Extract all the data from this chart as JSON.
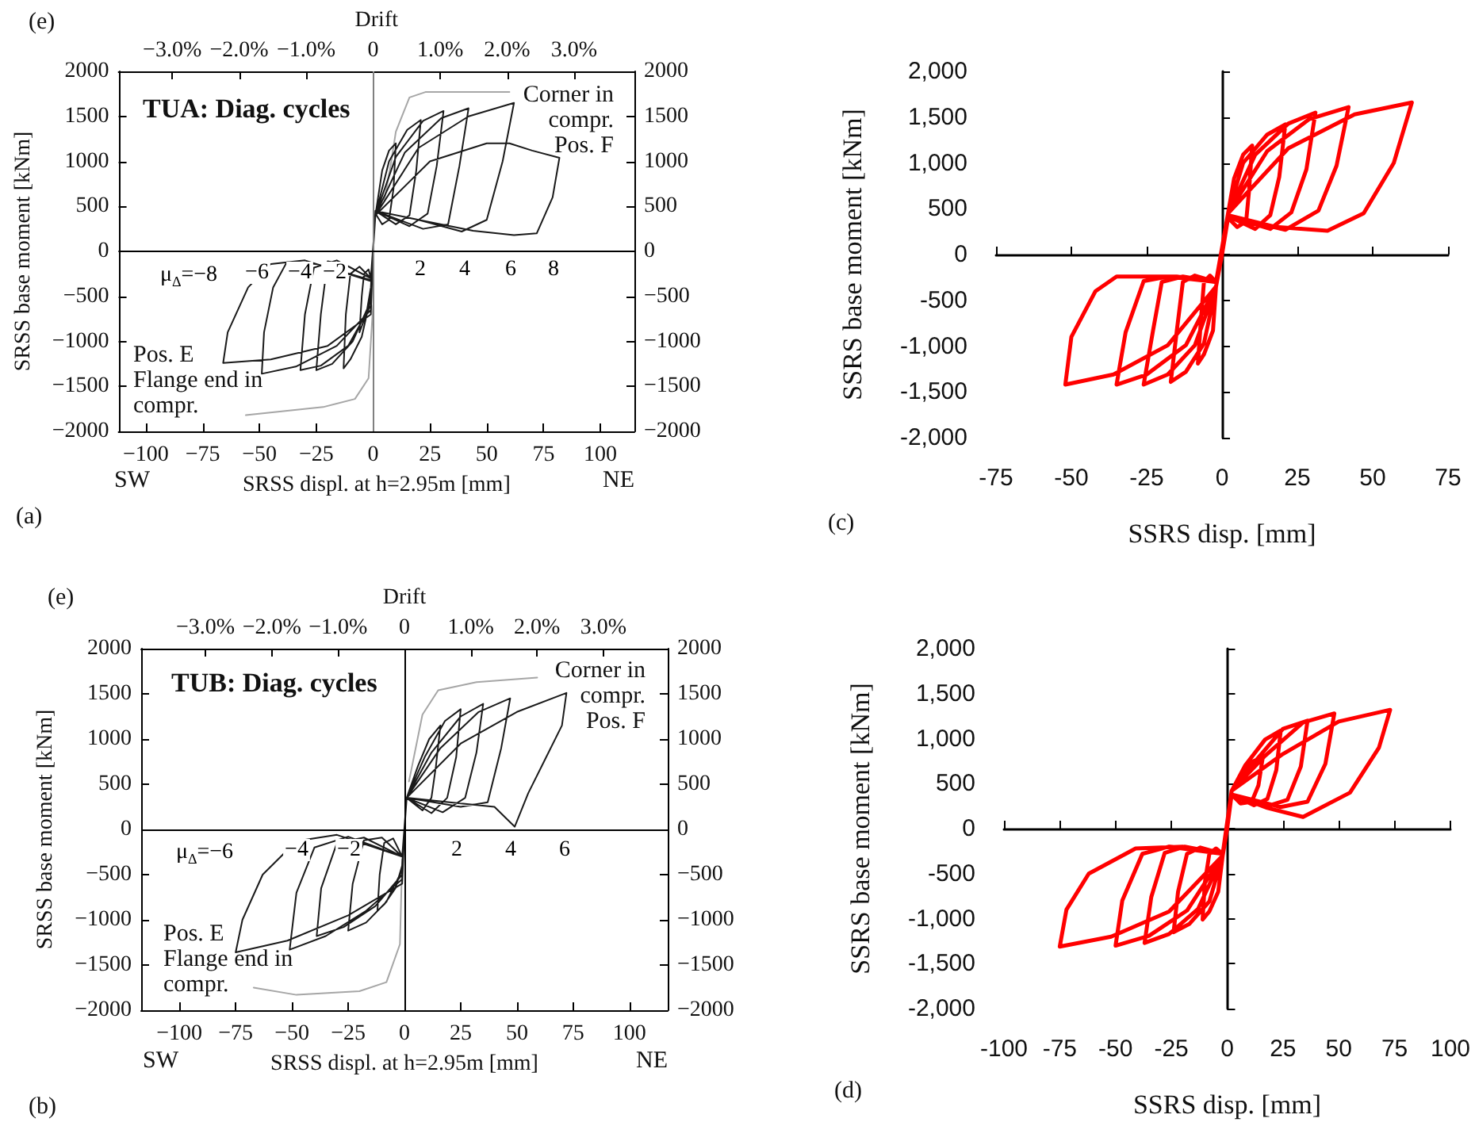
{
  "chart_data": [
    {
      "type": "line",
      "title": "TUA: Diag. cycles",
      "xlabel": "SRSS displ. at h=2.95m [mm]",
      "ylabel": "SRSS base moment [kNm]",
      "x2label": "Drift",
      "marker": "none",
      "xlim": [
        -112,
        115
      ],
      "xticks": [
        {
          "value": -100,
          "label": "−100"
        },
        {
          "value": -75,
          "label": "−75"
        },
        {
          "value": -50,
          "label": "−50"
        },
        {
          "value": -25,
          "label": "−25"
        },
        0,
        25,
        50,
        75,
        100
      ],
      "x2lim": [
        -3.8,
        3.9
      ],
      "x2ticks": [
        {
          "value": -3,
          "label": "−3.0%"
        },
        {
          "value": -2,
          "label": "−2.0%"
        },
        {
          "value": -1,
          "label": "−1.0%"
        },
        0,
        {
          "value": 1,
          "label": "1.0%"
        },
        {
          "value": 2,
          "label": "2.0%"
        },
        {
          "value": 3,
          "label": "3.0%"
        }
      ],
      "ylim": [
        -2000,
        2000
      ],
      "yticks": [
        {
          "value": -2000,
          "label": "−2000"
        },
        {
          "value": -1500,
          "label": "−1500"
        },
        {
          "value": -1000,
          "label": "−1000"
        },
        {
          "value": -500,
          "label": "−500"
        },
        0,
        500,
        1000,
        1500,
        2000
      ],
      "y2lim": [
        -2000,
        2000
      ],
      "y2ticks": [
        {
          "value": -2000,
          "label": "−2000"
        },
        {
          "value": -1500,
          "label": "−1500"
        },
        {
          "value": -1000,
          "label": "−1000"
        },
        {
          "value": -500,
          "label": "−500"
        },
        0,
        500,
        1000,
        1500,
        2000
      ],
      "ref_lines": [
        {
          "axis": "x",
          "value": 0,
          "color": "#808080"
        },
        {
          "axis": "y",
          "value": 0,
          "color": "#000000"
        }
      ],
      "series": [
        {
          "color": "#a6a6a6",
          "x": [
            5,
            8,
            10,
            16,
            23,
            60,
            null,
            0,
            -2,
            -8,
            -22,
            -56
          ],
          "values": [
            570,
            1000,
            1330,
            1710,
            1770,
            1770,
            null,
            -600,
            -1410,
            -1640,
            -1730,
            -1820
          ]
        },
        {
          "color": "#1a1a1a",
          "x": [
            0,
            1,
            4,
            7,
            10,
            9,
            7,
            4,
            1,
            0,
            -1,
            -3,
            -6,
            -5,
            -4,
            -2,
            -1,
            1,
            7,
            15,
            21,
            19,
            16,
            10,
            1,
            0,
            -1,
            -5,
            -10,
            -13,
            -12,
            -10,
            -6,
            -1,
            1,
            10,
            22,
            31,
            28,
            24,
            16,
            1,
            0,
            -1,
            -9,
            -18,
            -25,
            -23,
            -20,
            -12,
            -1,
            1,
            14,
            30,
            42,
            38,
            33,
            22,
            1,
            0,
            -1,
            -11,
            -23,
            -32,
            -30,
            -26,
            -16,
            -1,
            1,
            20,
            42,
            62,
            57,
            50,
            39,
            20,
            1,
            0,
            -1,
            -16,
            -34,
            -49,
            -48,
            -44,
            -38,
            -25,
            -1,
            1,
            25,
            50,
            60,
            70,
            82,
            79,
            72,
            62,
            44,
            20,
            1,
            0,
            -1,
            -20,
            -45,
            -66,
            -64,
            -55,
            -45,
            -30,
            -1
          ],
          "values": [
            0,
            400,
            900,
            1120,
            1200,
            700,
            350,
            300,
            420,
            0,
            -400,
            -700,
            -900,
            -500,
            -250,
            -200,
            -300,
            400,
            1000,
            1350,
            1460,
            900,
            400,
            300,
            450,
            0,
            -500,
            -950,
            -1200,
            -1300,
            -700,
            -250,
            -170,
            -300,
            400,
            1050,
            1450,
            1560,
            950,
            420,
            280,
            450,
            0,
            -550,
            -1000,
            -1250,
            -1320,
            -700,
            -110,
            -150,
            -300,
            400,
            1100,
            1480,
            1590,
            950,
            300,
            250,
            450,
            0,
            -600,
            -1050,
            -1270,
            -1320,
            -700,
            -180,
            -100,
            -300,
            400,
            1150,
            1500,
            1650,
            1000,
            350,
            220,
            350,
            450,
            0,
            -650,
            -1050,
            -1280,
            -1360,
            -900,
            -400,
            -120,
            -140,
            -320,
            400,
            1000,
            1200,
            1200,
            1120,
            1040,
            600,
            200,
            180,
            230,
            350,
            450,
            0,
            -700,
            -1050,
            -1200,
            -1240,
            -900,
            -400,
            -140,
            -100,
            -330
          ]
        }
      ],
      "annotations": [
        "(e)",
        "(a)",
        "SW",
        "NE",
        "Corner in\ncompr.\nPos. F",
        "Pos. E\nFlange end in\ncompr.",
        "μ$_{Δ}$=−8",
        "−6",
        "−4",
        "−2",
        "2",
        "4",
        "6",
        "8"
      ]
    },
    {
      "type": "line",
      "title": "TUB: Diag. cycles",
      "xlabel": "SRSS displ. at h=2.95m [mm]",
      "ylabel": "SRSS base moment [kNm]",
      "x2label": "Drift",
      "marker": "none",
      "xlim": [
        -117,
        117
      ],
      "xticks": [
        {
          "value": -100,
          "label": "−100"
        },
        {
          "value": -75,
          "label": "−75"
        },
        {
          "value": -50,
          "label": "−50"
        },
        {
          "value": -25,
          "label": "−25"
        },
        0,
        25,
        50,
        75,
        100
      ],
      "x2lim": [
        -3.97,
        3.97
      ],
      "x2ticks": [
        {
          "value": -3,
          "label": "−3.0%"
        },
        {
          "value": -2,
          "label": "−2.0%"
        },
        {
          "value": -1,
          "label": "−1.0%"
        },
        0,
        {
          "value": 1,
          "label": "1.0%"
        },
        {
          "value": 2,
          "label": "2.0%"
        },
        {
          "value": 3,
          "label": "3.0%"
        }
      ],
      "ylim": [
        -2000,
        2000
      ],
      "yticks": [
        {
          "value": -2000,
          "label": "−2000"
        },
        {
          "value": -1500,
          "label": "−1500"
        },
        {
          "value": -1000,
          "label": "−1000"
        },
        {
          "value": -500,
          "label": "−500"
        },
        0,
        500,
        1000,
        1500,
        2000
      ],
      "y2lim": [
        -2000,
        2000
      ],
      "y2ticks": [
        {
          "value": -2000,
          "label": "−2000"
        },
        {
          "value": -1500,
          "label": "−1500"
        },
        {
          "value": -1000,
          "label": "−1000"
        },
        {
          "value": -500,
          "label": "−500"
        },
        0,
        500,
        1000,
        1500,
        2000
      ],
      "ref_lines": [
        {
          "axis": "x",
          "value": 0,
          "color": "#000000"
        },
        {
          "axis": "y",
          "value": 0,
          "color": "#000000"
        }
      ],
      "series": [
        {
          "color": "#a6a6a6",
          "x": [
            2,
            8,
            15,
            32,
            59,
            null,
            -1,
            -2,
            -8,
            -20,
            -48,
            -67
          ],
          "values": [
            530,
            1270,
            1540,
            1630,
            1680,
            null,
            -330,
            -1270,
            -1690,
            -1790,
            -1830,
            -1750
          ]
        },
        {
          "color": "#1a1a1a",
          "x": [
            0,
            1,
            6,
            11,
            16,
            14,
            12,
            8,
            1,
            0,
            -1,
            -4,
            -9,
            -12,
            -11,
            -9,
            -5,
            -1,
            1,
            9,
            18,
            25,
            23,
            19,
            12,
            1,
            0,
            -1,
            -8,
            -17,
            -25,
            -23,
            -18,
            -10,
            -1,
            1,
            12,
            25,
            35,
            32,
            27,
            17,
            1,
            0,
            -1,
            -13,
            -27,
            -39,
            -37,
            -30,
            -18,
            -1,
            1,
            16,
            33,
            47,
            43,
            37,
            25,
            1,
            0,
            -1,
            -17,
            -35,
            -51,
            -48,
            -40,
            -25,
            -1,
            1,
            25,
            50,
            72,
            70,
            62,
            55,
            49,
            40,
            20,
            1,
            0,
            -1,
            -25,
            -52,
            -75,
            -72,
            -63,
            -48,
            -30,
            -1
          ],
          "values": [
            0,
            350,
            700,
            1000,
            1150,
            700,
            350,
            210,
            350,
            0,
            -400,
            -650,
            -830,
            -900,
            -500,
            -150,
            -100,
            -300,
            350,
            800,
            1200,
            1330,
            800,
            350,
            180,
            350,
            0,
            -450,
            -800,
            -1030,
            -1120,
            -600,
            -120,
            -90,
            -300,
            350,
            850,
            1250,
            1390,
            850,
            350,
            190,
            350,
            0,
            -500,
            -850,
            -1080,
            -1180,
            -650,
            -150,
            -90,
            -300,
            350,
            900,
            1300,
            1450,
            900,
            300,
            250,
            350,
            0,
            -550,
            -900,
            -1180,
            -1330,
            -700,
            -200,
            -80,
            -300,
            350,
            950,
            1300,
            1510,
            1150,
            750,
            400,
            30,
            250,
            300,
            350,
            0,
            -600,
            -950,
            -1230,
            -1360,
            -1000,
            -500,
            -130,
            -60,
            -300
          ]
        }
      ],
      "annotations": [
        "(e)",
        "(b)",
        "SW",
        "NE",
        "Corner in\ncompr.\nPos. F",
        "Pos. E\nFlange end in\ncompr.",
        "μ$_{Δ}$=−6",
        "−4",
        "−2",
        "2",
        "4",
        "6"
      ]
    },
    {
      "type": "line",
      "xlabel": "SSRS disp. [mm]",
      "ylabel": "SSRS base moment [kNm]",
      "marker": "none",
      "xlim": [
        -75,
        75
      ],
      "xticks": [
        -75,
        -50,
        -25,
        0,
        25,
        50,
        75
      ],
      "ylim": [
        -2000,
        2000
      ],
      "yticks": [
        {
          "value": -2000,
          "label": "-2,000"
        },
        {
          "value": -1500,
          "label": "-1,500"
        },
        {
          "value": -1000,
          "label": "-1,000"
        },
        -500,
        0,
        500,
        {
          "value": 1000,
          "label": "1,000"
        },
        {
          "value": 1500,
          "label": "1,500"
        },
        {
          "value": 2000,
          "label": "2,000"
        }
      ],
      "series": [
        {
          "color": "#ff0000",
          "x": [
            0,
            2,
            4,
            7,
            10,
            9,
            8,
            5,
            2,
            0,
            -2,
            -3,
            -6,
            -8,
            -7,
            -6,
            -4,
            -2,
            2,
            7,
            15,
            21,
            19,
            16,
            11,
            2,
            0,
            -2,
            -6,
            -12,
            -17,
            -15,
            -13,
            -9,
            -2,
            2,
            11,
            22,
            31,
            28,
            23,
            16,
            2,
            0,
            -2,
            -9,
            -18,
            -26,
            -23,
            -20,
            -13,
            -2,
            2,
            15,
            29,
            42,
            38,
            32,
            21,
            2,
            0,
            -2,
            -12,
            -25,
            -35,
            -32,
            -26,
            -18,
            -2,
            2,
            22,
            44,
            63,
            57,
            47,
            35,
            18,
            2,
            0,
            -2,
            -18,
            -36,
            -52,
            -50,
            -42,
            -35,
            -15,
            -2
          ],
          "values": [
            0,
            450,
            830,
            1090,
            1190,
            710,
            360,
            300,
            400,
            0,
            -350,
            -830,
            -1090,
            -1190,
            -710,
            -300,
            -230,
            -300,
            450,
            1000,
            1310,
            1420,
            850,
            430,
            280,
            420,
            0,
            -350,
            -970,
            -1280,
            -1390,
            -830,
            -300,
            -230,
            -300,
            450,
            1090,
            1430,
            1550,
            930,
            460,
            280,
            420,
            0,
            -350,
            -990,
            -1310,
            -1420,
            -850,
            -300,
            -240,
            -300,
            450,
            1130,
            1480,
            1610,
            970,
            480,
            270,
            420,
            0,
            -350,
            -990,
            -1310,
            -1420,
            -850,
            -290,
            -240,
            -300,
            450,
            1160,
            1530,
            1660,
            1000,
            450,
            260,
            300,
            430,
            0,
            -350,
            -990,
            -1310,
            -1420,
            -900,
            -400,
            -240,
            -240,
            -300
          ]
        }
      ],
      "annotations": [
        "(c)"
      ]
    },
    {
      "type": "line",
      "xlabel": "SSRS disp. [mm]",
      "ylabel": "SSRS base moment [kNm]",
      "marker": "none",
      "xlim": [
        -100,
        100
      ],
      "xticks": [
        -100,
        -75,
        -50,
        -25,
        0,
        25,
        50,
        75,
        100
      ],
      "ylim": [
        -2000,
        2000
      ],
      "yticks": [
        {
          "value": -2000,
          "label": "-2,000"
        },
        {
          "value": -1500,
          "label": "-1,500"
        },
        {
          "value": -1000,
          "label": "-1,000"
        },
        -500,
        0,
        500,
        {
          "value": 1000,
          "label": "1,000"
        },
        {
          "value": 1500,
          "label": "1,500"
        },
        {
          "value": 2000,
          "label": "2,000"
        }
      ],
      "series": [
        {
          "color": "#ff0000",
          "x": [
            0,
            2,
            6,
            11,
            16,
            14,
            11,
            6,
            2,
            0,
            -2,
            -4,
            -8,
            -11,
            -10,
            -8,
            -5,
            -2,
            2,
            8,
            17,
            24,
            22,
            18,
            12,
            2,
            0,
            -2,
            -8,
            -17,
            -24,
            -22,
            -18,
            -12,
            -2,
            2,
            13,
            25,
            36,
            33,
            27,
            18,
            2,
            0,
            -2,
            -13,
            -26,
            -37,
            -34,
            -28,
            -19,
            -2,
            2,
            17,
            34,
            48,
            44,
            36,
            24,
            2,
            0,
            -2,
            -18,
            -35,
            -50,
            -47,
            -38,
            -26,
            -2,
            2,
            25,
            50,
            73,
            68,
            55,
            34,
            18,
            2,
            0,
            -2,
            -26,
            -52,
            -75,
            -72,
            -62,
            -41,
            -20,
            -2
          ],
          "values": [
            0,
            420,
            560,
            740,
            800,
            480,
            300,
            280,
            380,
            0,
            -300,
            -700,
            -920,
            -1010,
            -600,
            -280,
            -220,
            -280,
            420,
            700,
            990,
            1090,
            650,
            330,
            260,
            380,
            0,
            -300,
            -810,
            -1060,
            -1150,
            -700,
            -280,
            -210,
            -280,
            420,
            760,
            1110,
            1200,
            690,
            320,
            250,
            380,
            0,
            -300,
            -890,
            -1170,
            -1270,
            -760,
            -270,
            -200,
            -280,
            420,
            810,
            1180,
            1280,
            720,
            300,
            240,
            380,
            0,
            -300,
            -910,
            -1190,
            -1300,
            -800,
            -280,
            -200,
            -280,
            420,
            830,
            1190,
            1320,
            900,
            400,
            130,
            230,
            380,
            0,
            -300,
            -920,
            -1200,
            -1310,
            -900,
            -500,
            -220,
            -200,
            -280
          ]
        }
      ],
      "annotations": [
        "(d)"
      ]
    }
  ]
}
